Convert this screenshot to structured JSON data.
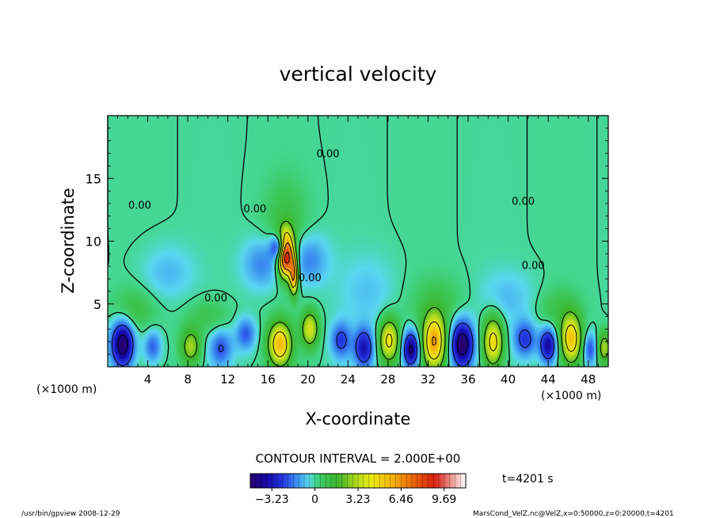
{
  "chart_data": {
    "type": "heatmap",
    "title": "vertical velocity",
    "xlabel": "X-coordinate",
    "ylabel": "Z-coordinate",
    "x_unit_left": "(×1000 m)",
    "x_unit_right": "(×1000 m)",
    "xlim": [
      0,
      50
    ],
    "ylim": [
      0,
      20
    ],
    "x_ticks": [
      4,
      8,
      12,
      16,
      20,
      24,
      28,
      32,
      36,
      40,
      44,
      48
    ],
    "y_ticks": [
      5,
      10,
      15
    ],
    "contour_interval_text": "CONTOUR INTERVAL = 2.000E+00",
    "contour_labels": [
      {
        "text": "0.00",
        "x": 22,
        "z": 16.7
      },
      {
        "text": "0.00",
        "x": 41.5,
        "z": 12.9
      },
      {
        "text": "0.00",
        "x": 3.2,
        "z": 12.6
      },
      {
        "text": "0.00",
        "x": 14.7,
        "z": 12.3
      },
      {
        "text": "0.00",
        "x": 42.5,
        "z": 7.8
      },
      {
        "text": "0.00",
        "x": 10.8,
        "z": 5.2
      },
      {
        "text": "0.00",
        "x": 20.2,
        "z": 6.8
      }
    ],
    "colorbar": {
      "min": -4.85,
      "max": 11.31,
      "tick_labels": [
        "−3.23",
        "0",
        "3.23",
        "6.46",
        "9.69"
      ],
      "tick_values": [
        -3.23,
        0,
        3.23,
        6.46,
        9.69
      ]
    },
    "features": [
      {
        "x": 17.8,
        "z": 9.0,
        "sx": 0.55,
        "sz": 1.2,
        "w": 11.0
      },
      {
        "x": 17.3,
        "z": 9.5,
        "sx": 0.6,
        "sz": 0.7,
        "w": -5.0
      },
      {
        "x": 18.6,
        "z": 7.2,
        "sx": 0.3,
        "sz": 1.0,
        "w": 6.0
      },
      {
        "x": 17.8,
        "z": 11.5,
        "sx": 1.5,
        "sz": 2.5,
        "w": 1.0
      },
      {
        "x": 15.5,
        "z": 8.2,
        "sx": 1.4,
        "sz": 1.4,
        "w": -1.6
      },
      {
        "x": 20.0,
        "z": 8.5,
        "sx": 1.4,
        "sz": 1.4,
        "w": -1.6
      },
      {
        "x": 1.5,
        "z": 1.8,
        "sx": 0.8,
        "sz": 1.3,
        "w": -5.0
      },
      {
        "x": 4.5,
        "z": 1.6,
        "sx": 0.6,
        "sz": 0.9,
        "w": -2.0
      },
      {
        "x": 8.3,
        "z": 1.6,
        "sx": 0.7,
        "sz": 1.0,
        "w": 3.0
      },
      {
        "x": 11.3,
        "z": 1.5,
        "sx": 0.8,
        "sz": 1.0,
        "w": -2.0
      },
      {
        "x": 13.8,
        "z": 2.6,
        "sx": 0.7,
        "sz": 0.9,
        "w": -2.0
      },
      {
        "x": 17.2,
        "z": 1.8,
        "sx": 0.8,
        "sz": 1.2,
        "w": 5.5
      },
      {
        "x": 20.2,
        "z": 3.0,
        "sx": 0.6,
        "sz": 1.0,
        "w": 3.8
      },
      {
        "x": 23.3,
        "z": 2.1,
        "sx": 0.7,
        "sz": 1.0,
        "w": -2.3
      },
      {
        "x": 25.6,
        "z": 1.5,
        "sx": 0.7,
        "sz": 1.1,
        "w": -3.2
      },
      {
        "x": 28.1,
        "z": 2.1,
        "sx": 0.7,
        "sz": 1.2,
        "w": 4.5
      },
      {
        "x": 30.3,
        "z": 1.4,
        "sx": 0.6,
        "sz": 1.0,
        "w": -4.5
      },
      {
        "x": 32.6,
        "z": 2.0,
        "sx": 0.8,
        "sz": 1.5,
        "w": 6.0
      },
      {
        "x": 35.4,
        "z": 1.8,
        "sx": 0.8,
        "sz": 1.3,
        "w": -5.0
      },
      {
        "x": 38.5,
        "z": 2.0,
        "sx": 0.7,
        "sz": 1.4,
        "w": 4.8
      },
      {
        "x": 41.7,
        "z": 2.2,
        "sx": 0.8,
        "sz": 1.0,
        "w": -2.5
      },
      {
        "x": 44.0,
        "z": 1.7,
        "sx": 0.6,
        "sz": 1.0,
        "w": -3.8
      },
      {
        "x": 46.3,
        "z": 2.2,
        "sx": 0.7,
        "sz": 1.3,
        "w": 5.2
      },
      {
        "x": 48.2,
        "z": 1.4,
        "sx": 0.5,
        "sz": 0.9,
        "w": -2.2
      },
      {
        "x": 49.6,
        "z": 1.5,
        "sx": 0.5,
        "sz": 0.9,
        "w": 3.0
      },
      {
        "x": 2.5,
        "z": 4.5,
        "sx": 1.5,
        "sz": 1.2,
        "w": 1.0
      },
      {
        "x": 6.0,
        "z": 7.5,
        "sx": 1.8,
        "sz": 1.5,
        "w": -0.9
      },
      {
        "x": 10.0,
        "z": 4.0,
        "sx": 1.5,
        "sz": 1.0,
        "w": 0.9
      },
      {
        "x": 26.0,
        "z": 6.0,
        "sx": 2.0,
        "sz": 2.0,
        "w": -0.7
      },
      {
        "x": 33.0,
        "z": 5.0,
        "sx": 2.0,
        "sz": 1.5,
        "w": 0.8
      },
      {
        "x": 40.0,
        "z": 5.5,
        "sx": 2.0,
        "sz": 1.5,
        "w": -0.8
      },
      {
        "x": 45.0,
        "z": 4.5,
        "sx": 1.5,
        "sz": 1.2,
        "w": 0.9
      }
    ]
  },
  "labels": {
    "time": "t=4201 s",
    "footer_left": "/usr/bin/gpview   2008-12-29",
    "footer_right": "MarsCond_VelZ.nc@VelZ,x=0:50000,z=0:20000,t=4201"
  }
}
